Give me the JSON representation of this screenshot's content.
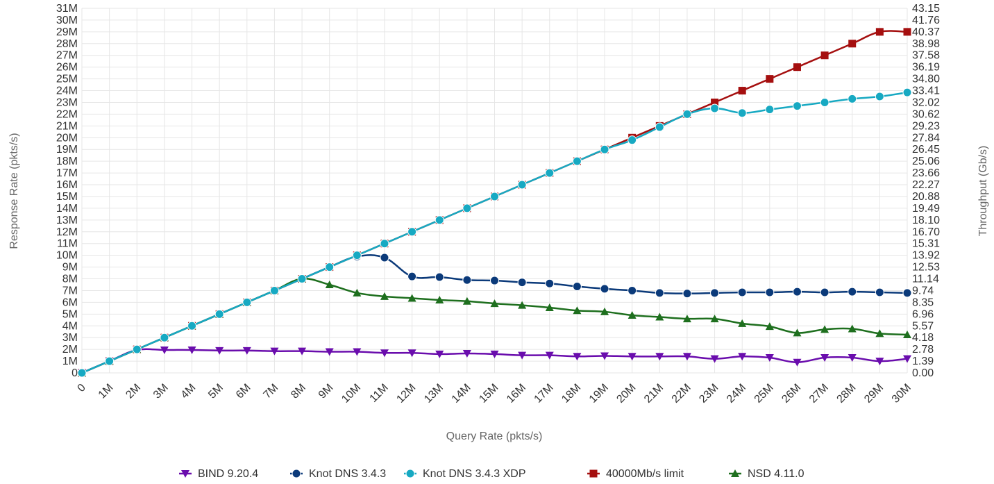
{
  "chart_data": {
    "type": "line",
    "xlabel": "Query Rate (pkts/s)",
    "ylabel": "Response Rate (pkts/s)",
    "y2label": "Throughput (Gb/s)",
    "xlim": [
      0,
      30
    ],
    "ylim": [
      0,
      31
    ],
    "x_ticks": [
      "0",
      "1M",
      "2M",
      "3M",
      "4M",
      "5M",
      "6M",
      "7M",
      "8M",
      "9M",
      "10M",
      "11M",
      "12M",
      "13M",
      "14M",
      "15M",
      "16M",
      "17M",
      "18M",
      "19M",
      "20M",
      "21M",
      "22M",
      "23M",
      "24M",
      "25M",
      "26M",
      "27M",
      "28M",
      "29M",
      "30M"
    ],
    "y_ticks": [
      "0",
      "1M",
      "2M",
      "3M",
      "4M",
      "5M",
      "6M",
      "7M",
      "8M",
      "9M",
      "10M",
      "11M",
      "12M",
      "13M",
      "14M",
      "15M",
      "16M",
      "17M",
      "18M",
      "19M",
      "20M",
      "21M",
      "22M",
      "23M",
      "24M",
      "25M",
      "26M",
      "27M",
      "28M",
      "29M",
      "30M",
      "31M"
    ],
    "y2_ticks": [
      "0.00",
      "1.39",
      "2.78",
      "4.18",
      "5.57",
      "6.96",
      "8.35",
      "9.74",
      "11.14",
      "12.53",
      "13.92",
      "15.31",
      "16.70",
      "18.10",
      "19.49",
      "20.88",
      "22.27",
      "23.66",
      "25.06",
      "26.45",
      "27.84",
      "29.23",
      "30.62",
      "32.02",
      "33.41",
      "34.80",
      "36.19",
      "37.58",
      "38.98",
      "40.37",
      "41.76",
      "43.15"
    ],
    "grid": true,
    "legend_position": "bottom",
    "x": [
      0,
      1,
      2,
      3,
      4,
      5,
      6,
      7,
      8,
      9,
      10,
      11,
      12,
      13,
      14,
      15,
      16,
      17,
      18,
      19,
      20,
      21,
      22,
      23,
      24,
      25,
      26,
      27,
      28,
      29,
      30
    ],
    "series": [
      {
        "name": "BIND 9.20.4",
        "color": "#6a0dad",
        "marker": "triangle-down",
        "values": [
          0,
          1,
          1.95,
          1.95,
          1.95,
          1.9,
          1.9,
          1.85,
          1.85,
          1.8,
          1.8,
          1.7,
          1.7,
          1.6,
          1.65,
          1.6,
          1.5,
          1.5,
          1.4,
          1.45,
          1.4,
          1.4,
          1.4,
          1.2,
          1.4,
          1.3,
          0.9,
          1.3,
          1.3,
          1.0,
          1.2
        ]
      },
      {
        "name": "Knot DNS 3.4.3",
        "color": "#0b3a7a",
        "marker": "circle",
        "values": [
          0,
          1,
          2,
          3,
          4,
          5,
          6,
          7,
          8,
          9,
          9.9,
          9.8,
          8.2,
          8.15,
          7.9,
          7.85,
          7.7,
          7.6,
          7.35,
          7.15,
          7.0,
          6.8,
          6.75,
          6.8,
          6.85,
          6.85,
          6.9,
          6.85,
          6.9,
          6.85,
          6.8
        ]
      },
      {
        "name": "Knot DNS 3.4.3 XDP",
        "color": "#17a9c2",
        "marker": "circle",
        "values": [
          0,
          1,
          2,
          3,
          4,
          5,
          6,
          7,
          8,
          9,
          10,
          11,
          12,
          13,
          14,
          15,
          16,
          17,
          18,
          19,
          19.8,
          20.9,
          22,
          22.5,
          22.1,
          22.4,
          22.7,
          23.0,
          23.3,
          23.5,
          23.85
        ]
      },
      {
        "name": "40000Mb/s limit",
        "color": "#a50f0f",
        "marker": "square",
        "values": [
          0,
          1,
          2,
          3,
          4,
          5,
          6,
          7,
          8,
          9,
          10,
          11,
          12,
          13,
          14,
          15,
          16,
          17,
          18,
          19,
          20,
          21,
          22,
          23,
          24,
          25,
          26,
          27,
          28,
          29,
          29
        ]
      },
      {
        "name": "NSD 4.11.0",
        "color": "#1e6f1e",
        "marker": "triangle-up",
        "values": [
          0,
          1,
          2,
          3,
          4,
          5,
          6,
          7,
          8,
          7.5,
          6.8,
          6.5,
          6.35,
          6.2,
          6.1,
          5.9,
          5.75,
          5.55,
          5.3,
          5.2,
          4.9,
          4.75,
          4.6,
          4.6,
          4.2,
          3.95,
          3.4,
          3.7,
          3.75,
          3.35,
          3.25
        ]
      }
    ]
  }
}
